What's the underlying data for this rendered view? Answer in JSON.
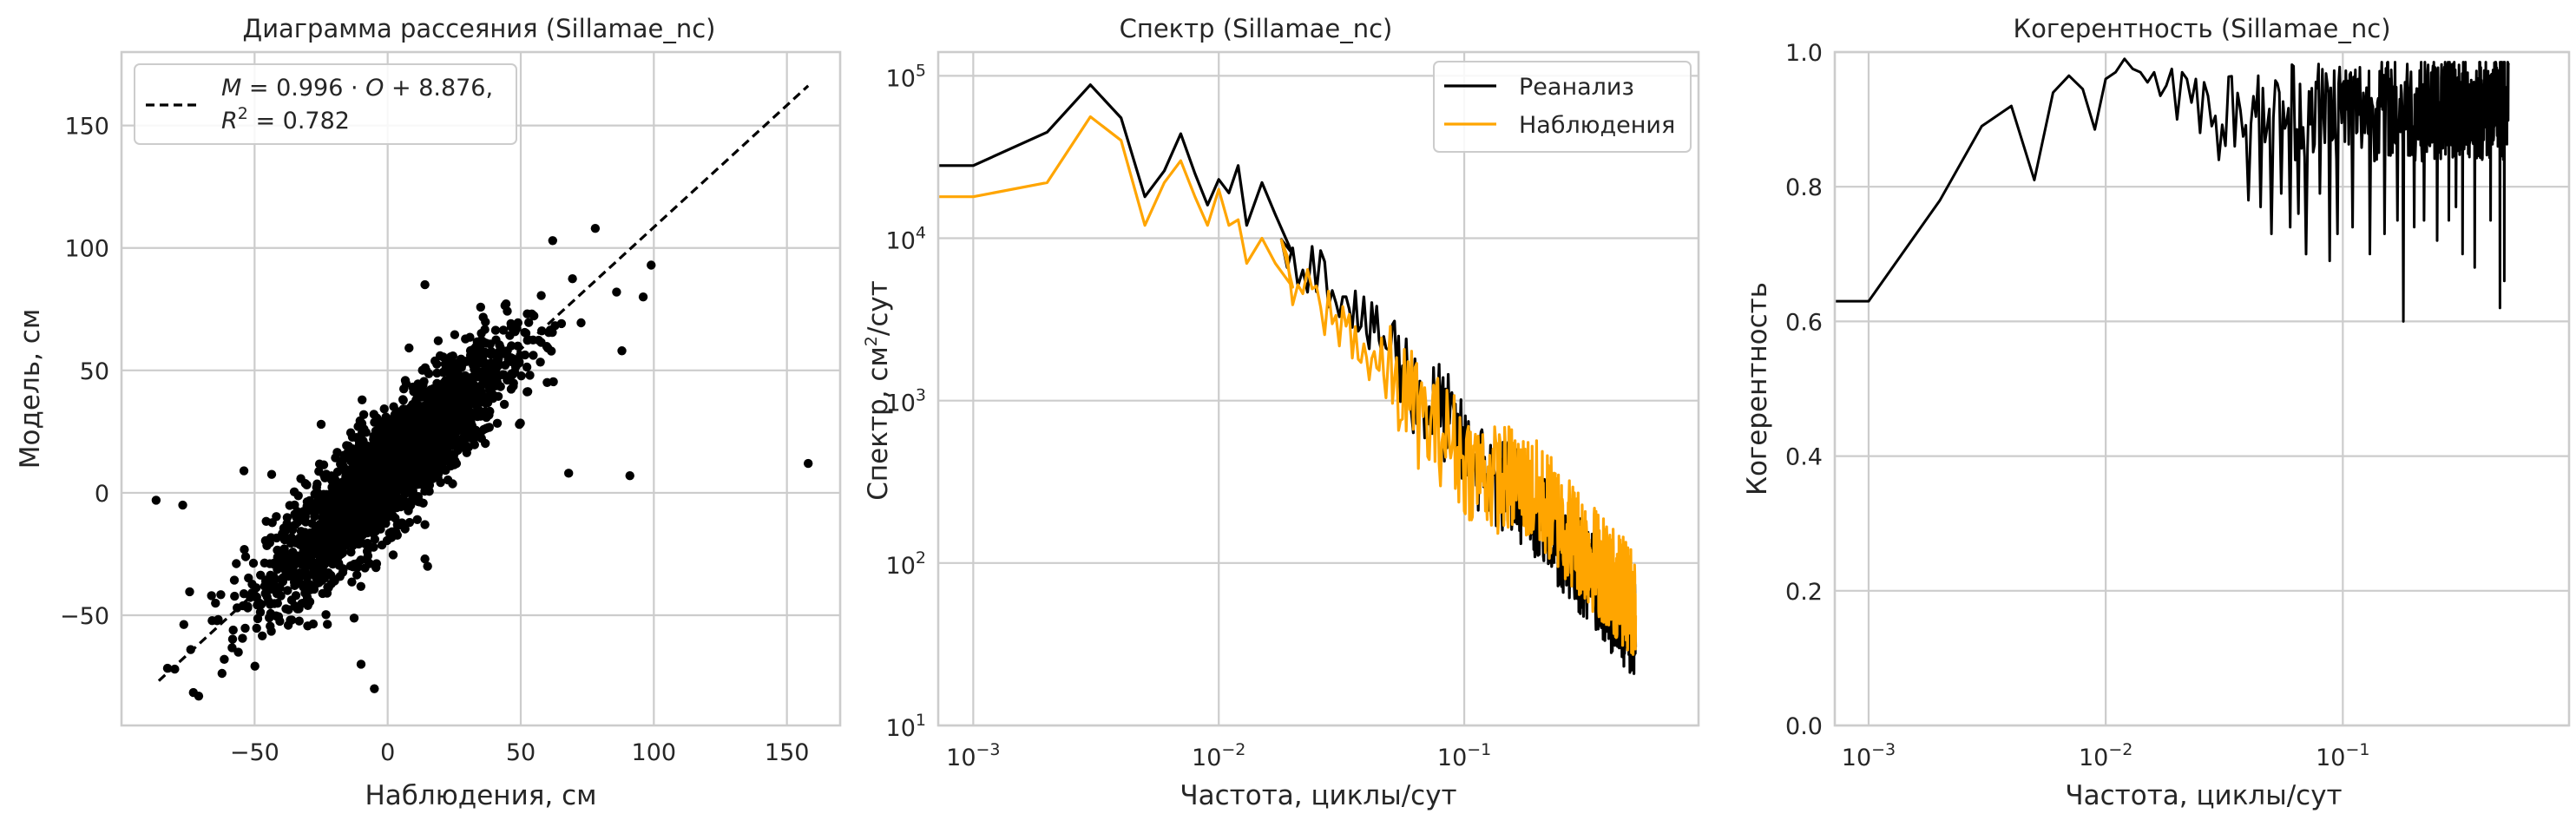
{
  "chart_data": [
    {
      "type": "scatter",
      "title": "Диаграмма рассеяния (Sillamae_nc)",
      "xlabel": "Наблюдения, см",
      "ylabel": "Модель, см",
      "xlim": [
        -100,
        170
      ],
      "ylim": [
        -95,
        180
      ],
      "xticks": [
        -50,
        0,
        50,
        100,
        150
      ],
      "yticks": [
        -50,
        0,
        50,
        100,
        150
      ],
      "grid": true,
      "point_color": "#000000",
      "cloud": {
        "center": [
          0,
          0
        ],
        "slope": 0.996,
        "intercept": 8.876,
        "r2": 0.782,
        "count": 2600,
        "x_sd": 22,
        "resid_sd": 11.8
      },
      "outliers": [
        {
          "x": -87,
          "y": -3
        },
        {
          "x": -77,
          "y": -5
        },
        {
          "x": -54,
          "y": 9
        },
        {
          "x": -71,
          "y": -83
        },
        {
          "x": -80,
          "y": -72
        },
        {
          "x": -74,
          "y": -64
        },
        {
          "x": 88,
          "y": 58
        },
        {
          "x": 91,
          "y": 7
        },
        {
          "x": 158,
          "y": 12
        },
        {
          "x": 99,
          "y": 93
        },
        {
          "x": 96,
          "y": 80
        },
        {
          "x": 86,
          "y": 82
        },
        {
          "x": 78,
          "y": 108
        },
        {
          "x": 62,
          "y": 103
        },
        {
          "x": 14,
          "y": 85
        },
        {
          "x": -5,
          "y": -80
        },
        {
          "x": -10,
          "y": -70
        },
        {
          "x": 15,
          "y": -30
        },
        {
          "x": 14,
          "y": -27
        },
        {
          "x": -25,
          "y": 28
        },
        {
          "x": 68,
          "y": 8
        }
      ],
      "fit_line": {
        "x": [
          -86,
          158
        ],
        "slope": 0.996,
        "intercept": 8.876,
        "style": "dashed",
        "color": "#000000"
      },
      "legend": {
        "placement": "top-left",
        "line1_parts": [
          "M",
          " = 0.996 · ",
          "O",
          " + 8.876,"
        ],
        "line2_parts": [
          "R",
          "2",
          " = 0.782"
        ]
      }
    },
    {
      "type": "line",
      "title": "Спектр (Sillamae_nc)",
      "xlabel": "Частота, циклы/сут",
      "ylabel_parts": [
        "Спектр, см",
        "2",
        "/сут"
      ],
      "xscale": "log",
      "yscale": "log",
      "xlim": [
        0.00072,
        0.9
      ],
      "ylim": [
        10,
        140000
      ],
      "xticks": [
        {
          "value": 0.001,
          "base": "10",
          "exp": "−3"
        },
        {
          "value": 0.01,
          "base": "10",
          "exp": "−2"
        },
        {
          "value": 0.1,
          "base": "10",
          "exp": "−1"
        }
      ],
      "yticks": [
        {
          "value": 10,
          "base": "10",
          "exp": "1"
        },
        {
          "value": 100,
          "base": "10",
          "exp": "2"
        },
        {
          "value": 1000,
          "base": "10",
          "exp": "3"
        },
        {
          "value": 10000,
          "base": "10",
          "exp": "4"
        },
        {
          "value": 100000,
          "base": "10",
          "exp": "5"
        }
      ],
      "grid": true,
      "legend": {
        "placement": "top-right"
      },
      "series": [
        {
          "name": "Реанализ",
          "color": "#000000",
          "anchors": [
            [
              0.00068,
              28000
            ],
            [
              0.001,
              28000
            ],
            [
              0.002,
              45000
            ],
            [
              0.003,
              88000
            ],
            [
              0.004,
              55000
            ],
            [
              0.005,
              18000
            ],
            [
              0.006,
              26000
            ],
            [
              0.007,
              44000
            ],
            [
              0.008,
              25000
            ],
            [
              0.009,
              16000
            ],
            [
              0.01,
              23000
            ],
            [
              0.011,
              19000
            ],
            [
              0.012,
              28000
            ],
            [
              0.013,
              12000
            ],
            [
              0.015,
              22000
            ],
            [
              0.017,
              14000
            ],
            [
              0.02,
              8000
            ],
            [
              0.025,
              6500
            ],
            [
              0.03,
              5000
            ],
            [
              0.035,
              4200
            ],
            [
              0.04,
              2800
            ],
            [
              0.05,
              2200
            ],
            [
              0.06,
              1300
            ],
            [
              0.07,
              900
            ],
            [
              0.08,
              900
            ],
            [
              0.09,
              650
            ],
            [
              0.1,
              480
            ],
            [
              0.13,
              320
            ],
            [
              0.16,
              280
            ],
            [
              0.2,
              200
            ],
            [
              0.25,
              130
            ],
            [
              0.3,
              95
            ],
            [
              0.35,
              75
            ],
            [
              0.4,
              55
            ],
            [
              0.45,
              45
            ],
            [
              0.5,
              38
            ]
          ],
          "jitter": 0.3
        },
        {
          "name": "Наблюдения",
          "color": "#ffa500",
          "anchors": [
            [
              0.00068,
              18000
            ],
            [
              0.001,
              18000
            ],
            [
              0.002,
              22000
            ],
            [
              0.003,
              56000
            ],
            [
              0.004,
              40000
            ],
            [
              0.005,
              12000
            ],
            [
              0.006,
              22000
            ],
            [
              0.007,
              30000
            ],
            [
              0.008,
              18000
            ],
            [
              0.009,
              12000
            ],
            [
              0.01,
              20000
            ],
            [
              0.011,
              12000
            ],
            [
              0.012,
              13000
            ],
            [
              0.013,
              7000
            ],
            [
              0.015,
              10000
            ],
            [
              0.017,
              7000
            ],
            [
              0.02,
              5000
            ],
            [
              0.025,
              4000
            ],
            [
              0.03,
              3000
            ],
            [
              0.035,
              2800
            ],
            [
              0.04,
              1800
            ],
            [
              0.05,
              1400
            ],
            [
              0.06,
              1000
            ],
            [
              0.07,
              700
            ],
            [
              0.08,
              650
            ],
            [
              0.09,
              550
            ],
            [
              0.1,
              420
            ],
            [
              0.13,
              330
            ],
            [
              0.16,
              330
            ],
            [
              0.2,
              260
            ],
            [
              0.25,
              180
            ],
            [
              0.3,
              130
            ],
            [
              0.35,
              100
            ],
            [
              0.4,
              80
            ],
            [
              0.45,
              65
            ],
            [
              0.5,
              55
            ]
          ],
          "jitter": 0.34
        }
      ]
    },
    {
      "type": "line",
      "title": "Когерентность (Sillamae_nc)",
      "xlabel": "Частота, циклы/сут",
      "ylabel": "Когерентность",
      "xscale": "log",
      "xlim": [
        0.00072,
        0.9
      ],
      "ylim": [
        0,
        1
      ],
      "xticks": [
        {
          "value": 0.001,
          "base": "10",
          "exp": "−3"
        },
        {
          "value": 0.01,
          "base": "10",
          "exp": "−2"
        },
        {
          "value": 0.1,
          "base": "10",
          "exp": "−1"
        }
      ],
      "yticks": [
        0.0,
        0.2,
        0.4,
        0.6,
        0.8,
        1.0
      ],
      "grid": true,
      "series": [
        {
          "color": "#000000",
          "points": [
            [
              0.00068,
              0.63
            ],
            [
              0.001,
              0.63
            ],
            [
              0.002,
              0.78
            ],
            [
              0.003,
              0.89
            ],
            [
              0.004,
              0.92
            ],
            [
              0.005,
              0.81
            ],
            [
              0.006,
              0.94
            ],
            [
              0.007,
              0.965
            ],
            [
              0.008,
              0.945
            ],
            [
              0.009,
              0.885
            ],
            [
              0.01,
              0.96
            ],
            [
              0.011,
              0.97
            ],
            [
              0.012,
              0.99
            ],
            [
              0.013,
              0.975
            ],
            [
              0.014,
              0.97
            ],
            [
              0.015,
              0.955
            ],
            [
              0.016,
              0.97
            ],
            [
              0.017,
              0.935
            ],
            [
              0.018,
              0.95
            ],
            [
              0.019,
              0.975
            ],
            [
              0.02,
              0.9
            ],
            [
              0.021,
              0.97
            ],
            [
              0.022,
              0.96
            ],
            [
              0.023,
              0.925
            ],
            [
              0.024,
              0.96
            ],
            [
              0.025,
              0.88
            ],
            [
              0.026,
              0.955
            ],
            [
              0.027,
              0.935
            ]
          ],
          "noisy_tail": {
            "from": 0.028,
            "to": 0.5,
            "step": 0.001,
            "center": 0.91,
            "spread": 0.08
          },
          "dips": [
            [
              0.03,
              0.84
            ],
            [
              0.035,
              0.86
            ],
            [
              0.04,
              0.78
            ],
            [
              0.045,
              0.77
            ],
            [
              0.05,
              0.73
            ],
            [
              0.055,
              0.79
            ],
            [
              0.06,
              0.74
            ],
            [
              0.065,
              0.76
            ],
            [
              0.07,
              0.7
            ],
            [
              0.08,
              0.79
            ],
            [
              0.088,
              0.69
            ],
            [
              0.095,
              0.73
            ],
            [
              0.11,
              0.74
            ],
            [
              0.13,
              0.7
            ],
            [
              0.15,
              0.73
            ],
            [
              0.17,
              0.75
            ],
            [
              0.18,
              0.6
            ],
            [
              0.2,
              0.74
            ],
            [
              0.22,
              0.75
            ],
            [
              0.25,
              0.72
            ],
            [
              0.28,
              0.75
            ],
            [
              0.3,
              0.77
            ],
            [
              0.32,
              0.7
            ],
            [
              0.36,
              0.68
            ],
            [
              0.42,
              0.75
            ],
            [
              0.46,
              0.62
            ],
            [
              0.48,
              0.66
            ]
          ]
        }
      ]
    }
  ]
}
